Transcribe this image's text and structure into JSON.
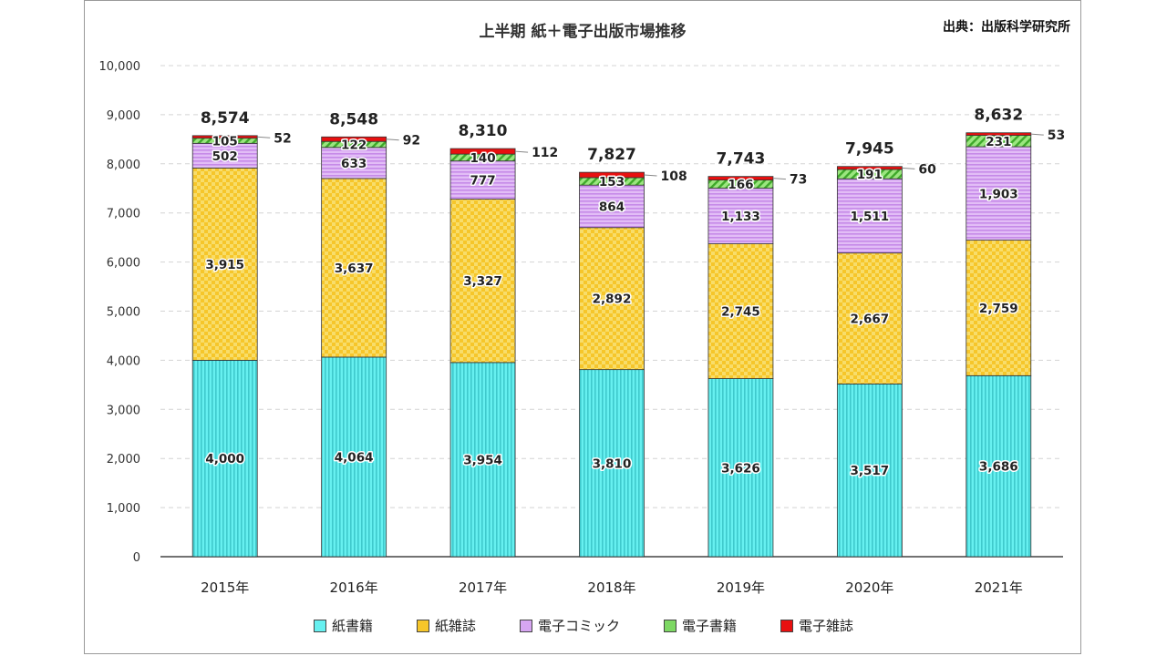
{
  "title": "上半期 紙＋電子出版市場推移",
  "source": "出典：出版科学研究所",
  "colors": {
    "paper_books": "#66f0f0",
    "paper_magazines": "#f6c62a",
    "e_comics": "#d7a6f2",
    "e_books": "#7dd863",
    "e_magazines": "#e81010"
  },
  "chart_data": {
    "type": "bar",
    "stacked": true,
    "title": "上半期 紙＋電子出版市場推移",
    "categories": [
      "2015年",
      "2016年",
      "2017年",
      "2018年",
      "2019年",
      "2020年",
      "2021年"
    ],
    "series": [
      {
        "name": "紙書籍",
        "key": "paper_books",
        "values": [
          4000,
          4064,
          3954,
          3810,
          3626,
          3517,
          3686
        ]
      },
      {
        "name": "紙雑誌",
        "key": "paper_magazines",
        "values": [
          3915,
          3637,
          3327,
          2892,
          2745,
          2667,
          2759
        ]
      },
      {
        "name": "電子コミック",
        "key": "e_comics",
        "values": [
          502,
          633,
          777,
          864,
          1133,
          1511,
          1903
        ]
      },
      {
        "name": "電子書籍",
        "key": "e_books",
        "values": [
          105,
          122,
          140,
          153,
          166,
          191,
          231
        ]
      },
      {
        "name": "電子雑誌",
        "key": "e_magazines",
        "values": [
          52,
          92,
          112,
          108,
          73,
          60,
          53
        ]
      }
    ],
    "totals": [
      8574,
      8548,
      8310,
      7827,
      7743,
      7945,
      8632
    ],
    "y_ticks": [
      "0",
      "1,000",
      "2,000",
      "3,000",
      "4,000",
      "5,000",
      "6,000",
      "7,000",
      "8,000",
      "9,000",
      "10,000"
    ],
    "ylim": [
      0,
      10000
    ],
    "grid": true,
    "legend_position": "bottom"
  }
}
